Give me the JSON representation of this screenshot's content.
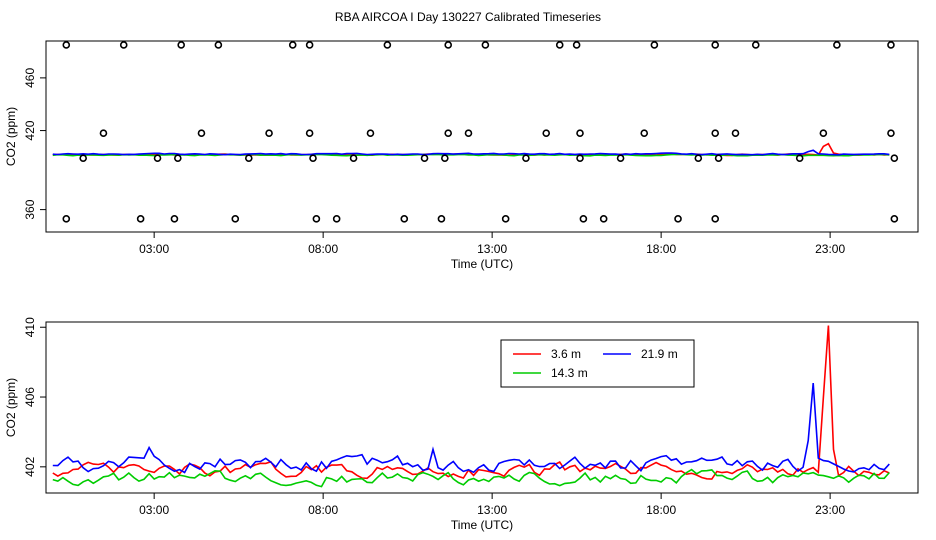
{
  "title": "RBA AIRCOA I  Day 130227  Calibrated Timeseries",
  "chart_data": [
    {
      "type": "line",
      "xlabel": "Time (UTC)",
      "ylabel": "CO2 (ppm)",
      "xlim": [
        -0.2,
        25.6
      ],
      "ylim": [
        343,
        488
      ],
      "x_ticks": [
        {
          "value": 3,
          "label": "03:00"
        },
        {
          "value": 8,
          "label": "08:00"
        },
        {
          "value": 13,
          "label": "13:00"
        },
        {
          "value": 18,
          "label": "18:00"
        },
        {
          "value": 23,
          "label": "23:00"
        }
      ],
      "y_ticks": [
        {
          "value": 360,
          "label": "360"
        },
        {
          "value": 420,
          "label": "420"
        },
        {
          "value": 460,
          "label": "460"
        }
      ],
      "series_smooth": [
        {
          "name": "3.6 m",
          "color": "#ff0000",
          "base": 401.8,
          "noise": 0.35,
          "spikes": [
            {
              "x": 22.85,
              "v": 408
            },
            {
              "x": 23.0,
              "v": 410
            },
            {
              "x": 23.15,
              "v": 403
            }
          ]
        },
        {
          "name": "14.3 m",
          "color": "#00cc00",
          "base": 401.4,
          "noise": 0.35,
          "spikes": []
        },
        {
          "name": "21.9 m",
          "color": "#0000ff",
          "base": 402.2,
          "noise": 0.4,
          "spikes": [
            {
              "x": 22.4,
              "v": 404
            },
            {
              "x": 22.55,
              "v": 405
            }
          ]
        }
      ],
      "calibration_points": {
        "x": [
          0.4,
          2.1,
          3.8,
          4.9,
          7.1,
          7.6,
          9.9,
          11.7,
          12.8,
          15.0,
          15.5,
          17.8,
          19.6,
          20.8,
          23.2,
          24.8,
          1.5,
          4.4,
          6.4,
          7.6,
          9.4,
          11.7,
          12.3,
          14.6,
          15.6,
          17.5,
          19.6,
          20.2,
          22.8,
          24.8,
          0.9,
          3.1,
          3.7,
          5.8,
          7.7,
          8.9,
          11.0,
          11.6,
          14.0,
          15.6,
          16.8,
          19.1,
          19.7,
          22.1,
          24.9,
          0.4,
          2.6,
          3.6,
          5.4,
          7.8,
          8.4,
          10.4,
          11.5,
          13.4,
          15.7,
          16.3,
          18.5,
          19.6,
          24.9
        ],
        "y": [
          485,
          485,
          485,
          485,
          485,
          485,
          485,
          485,
          485,
          485,
          485,
          485,
          485,
          485,
          485,
          485,
          418,
          418,
          418,
          418,
          418,
          418,
          418,
          418,
          418,
          418,
          418,
          418,
          418,
          418,
          399,
          399,
          399,
          399,
          399,
          399,
          399,
          399,
          399,
          399,
          399,
          399,
          399,
          399,
          399,
          353,
          353,
          353,
          353,
          353,
          353,
          353,
          353,
          353,
          353,
          353,
          353,
          353,
          353
        ]
      }
    },
    {
      "type": "line",
      "xlabel": "Time (UTC)",
      "ylabel": "CO2 (ppm)",
      "xlim": [
        -0.2,
        25.6
      ],
      "ylim": [
        400.5,
        410.3
      ],
      "x_ticks": [
        {
          "value": 3,
          "label": "03:00"
        },
        {
          "value": 8,
          "label": "08:00"
        },
        {
          "value": 13,
          "label": "13:00"
        },
        {
          "value": 18,
          "label": "18:00"
        },
        {
          "value": 23,
          "label": "23:00"
        }
      ],
      "y_ticks": [
        {
          "value": 402,
          "label": "402"
        },
        {
          "value": 406,
          "label": "406"
        },
        {
          "value": 410,
          "label": "410"
        }
      ],
      "legend": {
        "position": "top-right",
        "items": [
          {
            "label": "3.6 m",
            "color": "#ff0000"
          },
          {
            "label": "21.9 m",
            "color": "#0000ff"
          },
          {
            "label": "14.3 m",
            "color": "#00cc00"
          }
        ]
      },
      "series": [
        {
          "name": "3.6 m",
          "color": "#ff0000",
          "base": 401.8,
          "noise": 0.3,
          "spikes": [
            {
              "x": 22.85,
              "v": 406
            },
            {
              "x": 23.0,
              "v": 410.1
            },
            {
              "x": 23.15,
              "v": 403
            }
          ]
        },
        {
          "name": "14.3 m",
          "color": "#00cc00",
          "base": 401.4,
          "noise": 0.3,
          "spikes": []
        },
        {
          "name": "21.9 m",
          "color": "#0000ff",
          "base": 402.2,
          "noise": 0.35,
          "spikes": [
            {
              "x": 2.8,
              "v": 403.1
            },
            {
              "x": 11.3,
              "v": 403.0
            },
            {
              "x": 22.3,
              "v": 403.5
            },
            {
              "x": 22.45,
              "v": 406.8
            },
            {
              "x": 22.6,
              "v": 402.5
            }
          ]
        }
      ]
    }
  ]
}
